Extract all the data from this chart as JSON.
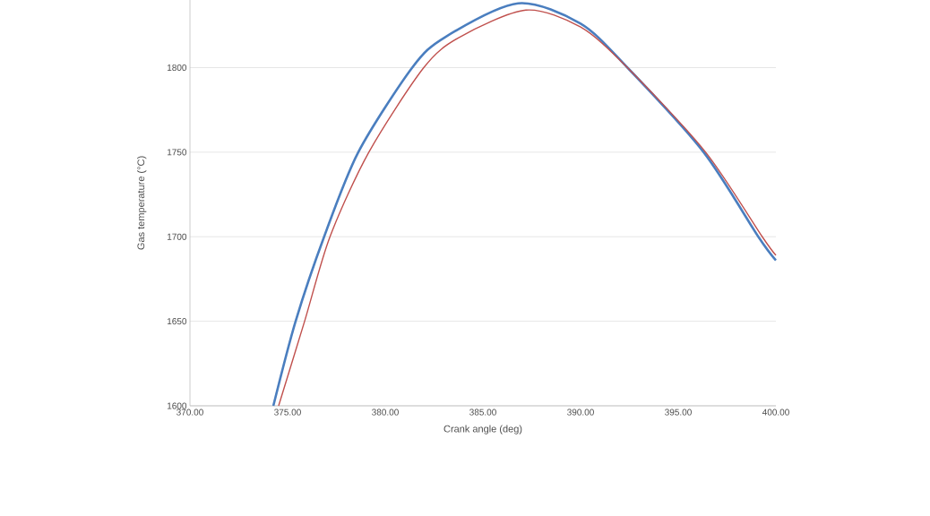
{
  "chart_data": {
    "type": "line",
    "xlabel": "Crank angle (deg)",
    "ylabel": "Gas temperature (°C)",
    "xlim": [
      370,
      400
    ],
    "ylim": [
      1600,
      1840
    ],
    "xticks": [
      {
        "value": 370,
        "label": "370.00"
      },
      {
        "value": 375,
        "label": "375.00"
      },
      {
        "value": 380,
        "label": "380.00"
      },
      {
        "value": 385,
        "label": "385.00"
      },
      {
        "value": 390,
        "label": "390.00"
      },
      {
        "value": 395,
        "label": "395.00"
      },
      {
        "value": 400,
        "label": "400.00"
      }
    ],
    "yticks": [
      1600,
      1650,
      1700,
      1750,
      1800
    ],
    "grid": "y",
    "marker": "none",
    "line_style": "solid",
    "series": [
      {
        "color": "#4a7ebf",
        "x": [
          374.27,
          375.41,
          376.87,
          378.62,
          381.38,
          383.06,
          386.8,
          390,
          392.4,
          396.3,
          399.1,
          400
        ],
        "values": [
          1600,
          1650,
          1700,
          1750,
          1800,
          1818,
          1838,
          1826,
          1800,
          1750,
          1700,
          1686
        ]
      },
      {
        "color": "#c0504d",
        "x": [
          374.54,
          375.87,
          377.17,
          379.16,
          381.97,
          383.8,
          387.2,
          390,
          392.4,
          396.4,
          399.3,
          400
        ],
        "values": [
          1600,
          1650,
          1700,
          1750,
          1800,
          1818,
          1834,
          1824,
          1800,
          1750,
          1700,
          1689
        ]
      }
    ]
  }
}
